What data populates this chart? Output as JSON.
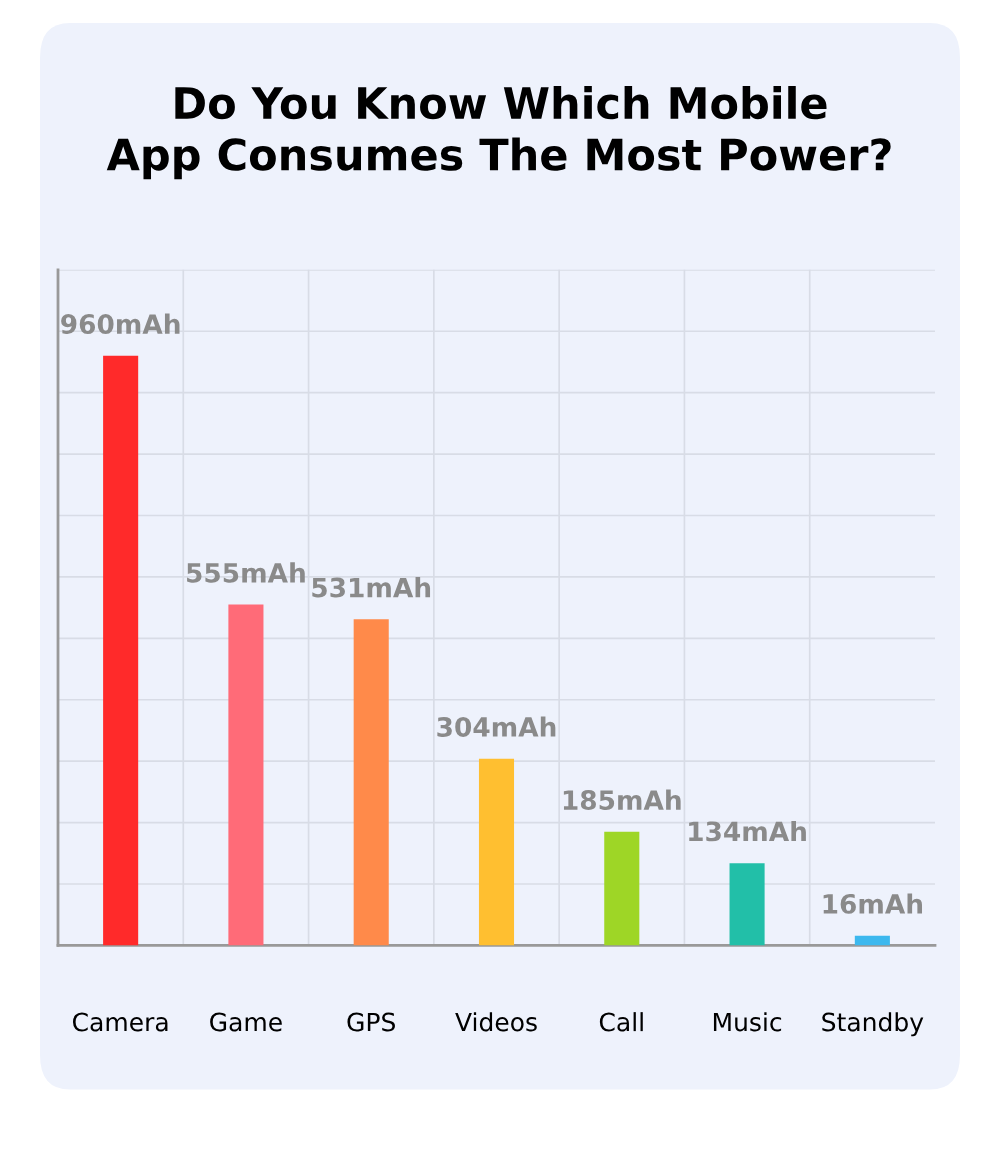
{
  "chart_data": {
    "type": "bar",
    "title": "Do You Know Which Mobile\nApp Consumes The Most Power?",
    "categories": [
      "Camera",
      "Game",
      "GPS",
      "Videos",
      "Call",
      "Music",
      "Standby"
    ],
    "values": [
      960,
      555,
      531,
      304,
      185,
      134,
      16
    ],
    "value_labels": [
      "960mAh",
      "555mAh",
      "531mAh",
      "304mAh",
      "185mAh",
      "134mAh",
      "16mAh"
    ],
    "colors": [
      "#ff2a2a",
      "#ff6b78",
      "#ff8a4a",
      "#ffbf30",
      "#9ed626",
      "#22bfa8",
      "#3cb8ee"
    ],
    "ylim": [
      0,
      1100
    ],
    "tick_labels": "x",
    "grid": true
  }
}
